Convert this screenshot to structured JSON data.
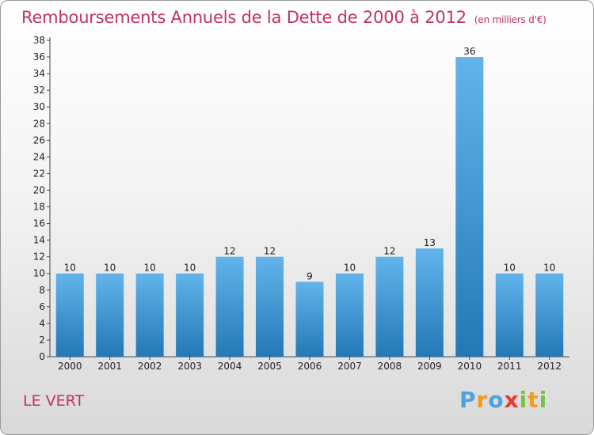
{
  "title": "Remboursements Annuels de la Dette de 2000 à 2012",
  "unit_label": "(en milliers d'€)",
  "commune": "LE VERT",
  "logo": {
    "letters": [
      "P",
      "r",
      "o",
      "x",
      "i",
      "t",
      "i"
    ],
    "colors": [
      "#4aa3df",
      "#f29b1c",
      "#4aa3df",
      "#e63b2e",
      "#7cc242",
      "#f29b1c",
      "#7cc242"
    ]
  },
  "colors": {
    "bar_light": "#63b4ec",
    "bar_dark": "#2378b5",
    "title": "#c2306b"
  },
  "chart_data": {
    "type": "bar",
    "categories": [
      "2000",
      "2001",
      "2002",
      "2003",
      "2004",
      "2005",
      "2006",
      "2007",
      "2008",
      "2009",
      "2010",
      "2011",
      "2012"
    ],
    "values": [
      10,
      10,
      10,
      10,
      12,
      12,
      9,
      10,
      12,
      13,
      36,
      10,
      10
    ],
    "ylim": [
      0,
      38
    ],
    "yticks": [
      0,
      2,
      4,
      6,
      8,
      10,
      12,
      14,
      16,
      18,
      20,
      22,
      24,
      26,
      28,
      30,
      32,
      34,
      36,
      38
    ],
    "grid": false,
    "data_labels": true
  }
}
